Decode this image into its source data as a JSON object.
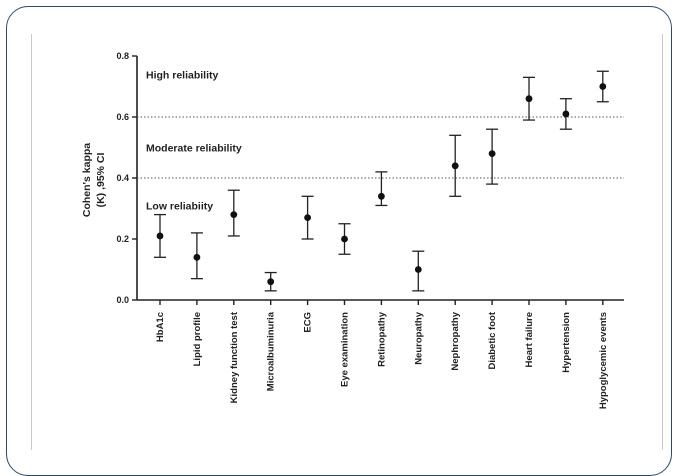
{
  "chart_data": {
    "type": "scatter",
    "ylabel_line1": "Cohen's kappa",
    "ylabel_line2": "(K) ,95% CI",
    "ylim": [
      0,
      0.8
    ],
    "yticks": [
      "0.0",
      "0.2",
      "0.4",
      "0.6",
      "0.8"
    ],
    "categories": [
      "HbA1c",
      "Lipid profile",
      "Kidney function test",
      "Microalbuminuria",
      "ECG",
      "Eye examination",
      "Retinopathy",
      "Neuropathy",
      "Nephropathy",
      "Diabetic foot",
      "Heart failure",
      "Hypertension",
      "Hypoglycemic events"
    ],
    "values": [
      0.21,
      0.14,
      0.28,
      0.06,
      0.27,
      0.2,
      0.34,
      0.1,
      0.44,
      0.48,
      0.66,
      0.61,
      0.7
    ],
    "ci_lower": [
      0.14,
      0.07,
      0.21,
      0.03,
      0.2,
      0.15,
      0.31,
      0.03,
      0.34,
      0.38,
      0.59,
      0.56,
      0.65
    ],
    "ci_upper": [
      0.28,
      0.22,
      0.36,
      0.09,
      0.34,
      0.25,
      0.42,
      0.16,
      0.54,
      0.56,
      0.73,
      0.66,
      0.75
    ],
    "reference_lines": [
      0.4,
      0.6
    ],
    "bands": [
      {
        "label": "High reliability",
        "y": 0.74
      },
      {
        "label": "Moderate reliability",
        "y": 0.5
      },
      {
        "label": "Low reliabiity",
        "y": 0.31
      }
    ],
    "grid": false
  }
}
